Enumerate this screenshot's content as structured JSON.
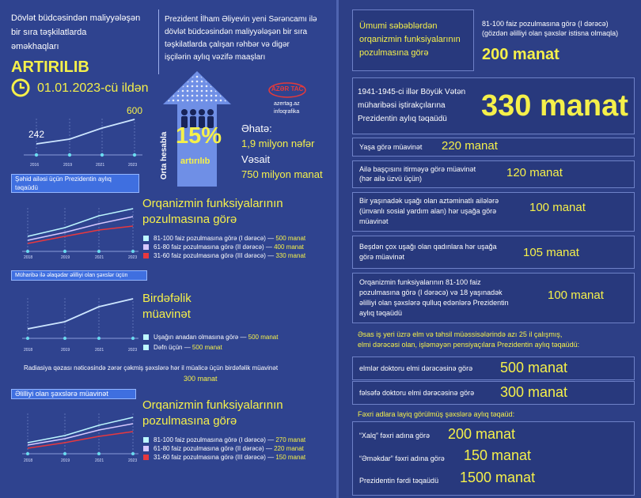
{
  "header": {
    "line1": "Dövlət büdcəsindən maliyyələşən",
    "line2": "bir sıra təşkilatlarda",
    "line3": "əməkhaqları",
    "title": "ARTIRILIB",
    "date": "01.01.2023-cü ildən"
  },
  "decree": {
    "line1": "Prezident İlham Əliyevin yeni Sərəncamı ilə",
    "line2": "dövlət büdcəsindən maliyyələşən bir sıra",
    "line3": "təşkilatlarda çalışan rəhbər və digər",
    "line4": "işçilərin aylıq vəzifə maaşları"
  },
  "arrow": {
    "side_label": "Orta hesabla",
    "percent": "15%",
    "label": "artırılıb"
  },
  "azertac": {
    "logo": "AZƏR TAC",
    "site": "azertag.az",
    "sub": "infoqrafika"
  },
  "coverage": {
    "label": "Əhatə:",
    "value": "1,9 milyon nəfər",
    "fund_label": "Vəsait",
    "fund_value": "750 milyon manat"
  },
  "chart1": {
    "start_label": "242",
    "end_label": "600",
    "years": [
      "2016",
      "2019",
      "2021",
      "2023"
    ],
    "ribbon": "Şəhid ailəsi üçün Prezidentin aylıq təqaüdü"
  },
  "section2": {
    "title1": "Orqanizmin funksiyalarının",
    "title2": "pozulmasına görə",
    "legend": [
      "81-100 faiz pozulmasına görə (I dərəcə)",
      "61-80 faiz pozulmasına görə (II dərəcə)",
      "31-60 faiz pozulmasına görə (III dərəcə)"
    ],
    "values": [
      "500 manat",
      "400 manat",
      "330 manat"
    ],
    "ribbon": "Müharibə ilə əlaqədar əlilliyi olan şəxslər üçün",
    "years": [
      "2018",
      "2019",
      "2021",
      "2023"
    ]
  },
  "section3": {
    "title1": "Birdəfəlik",
    "title2": "müavinət",
    "legend": [
      "Uşağın anadan olmasına görə",
      "Dəfn üçün"
    ],
    "values": [
      "500 manat",
      "500 manat"
    ],
    "years": [
      "2018",
      "2019",
      "2021",
      "2023"
    ],
    "radiation": "Radiasiya qəzası nəticəsində zərər çəkmiş şəxslərə hər il müalicə üçün birdəfəlik müavinət",
    "radiation_value": "300 manat"
  },
  "section4": {
    "ribbon": "Əlilliyi olan şəxslərə müavinət",
    "title1": "Orqanizmin funksiyalarının",
    "title2": "pozulmasına görə",
    "legend": [
      "81-100 faiz pozulmasına görə (I dərəcə)",
      "61-80 faiz pozulmasına görə (II dərəcə)",
      "31-60 faiz pozulmasına görə (III dərəcə)"
    ],
    "values": [
      "270 manat",
      "220 manat",
      "150 manat"
    ],
    "years": [
      "2018",
      "2019",
      "2021",
      "2023"
    ]
  },
  "right": {
    "general": {
      "l1": "Ümumi səbəblərdən",
      "l2": "orqanizmin funksiyalarının",
      "l3": "pozulmasına görə",
      "desc1": "81-100 faiz pozulmasına görə (I dərəcə)",
      "desc2": "(gözdən əlilliyi olan şəxslər istisna olmaqla)",
      "value": "200 manat"
    },
    "war": {
      "l1": "1941-1945-ci illər Böyük Vətən",
      "l2": "müharibəsi iştirakçılarına",
      "l3": "Prezidentin aylıq təqaüdü",
      "value": "330 manat"
    },
    "age": {
      "label": "Yaşa görə müavinət",
      "value": "220 manat"
    },
    "head": {
      "l1": "Ailə başçısını itirməyə görə müavinət",
      "l2": "(hər ailə üzvü üçün)",
      "value": "120 manat"
    },
    "child": {
      "l1": "Bir yaşınadək uşağı olan aztəminatlı ailələrə",
      "l2": "(ünvanlı sosial yardım alan) hər uşağa görə",
      "l3": "müavinət",
      "value": "100 manat"
    },
    "five": {
      "l1": "Beşdən çox uşağı olan qadınlara hər uşağa",
      "l2": "görə müavinət",
      "value": "105 manat"
    },
    "care": {
      "l1": "Orqanizmin funksiyalarının 81-100 faiz",
      "l2": "pozulmasına görə (I dərəcə) və 18 yaşınadək",
      "l3": "əlilliyi olan şəxslərə qulluq edənlərə Prezidentin",
      "l4": "aylıq təqaüdü",
      "value": "100 manat"
    },
    "science": {
      "h1": "Əsas iş yeri üzrə elm və təhsil müəssisələrində azı 25 il çalışmış,",
      "h2": "elmi dərəcəsi olan, işləməyən pensiyaçılara Prezidentin aylıq təqaüdü:",
      "doc_label": "elmlər doktoru elmi dərəcəsinə görə",
      "doc_value": "500 manat",
      "phd_label": "fəlsəfə doktoru elmi dərəcəsinə görə",
      "phd_value": "300 manat"
    },
    "honor": {
      "h1": "Fəxri adlara layiq görülmüş şəxslərə aylıq təqaüd:",
      "xalq_label": "“Xalq” fəxri adına görə",
      "xalq_value": "200 manat",
      "emekdar_label": "“Əməkdar” fəxri adına görə",
      "emekdar_value": "150 manat",
      "ferdi_label": "Prezidentin fərdi təqaüdü",
      "ferdi_value": "1500 manat"
    }
  },
  "colors": {
    "accent": "#f5f04a",
    "cyan": "#bdf7ff",
    "lilac": "#d7c8ff",
    "red": "#e8383e",
    "bg": "#2f438f"
  }
}
